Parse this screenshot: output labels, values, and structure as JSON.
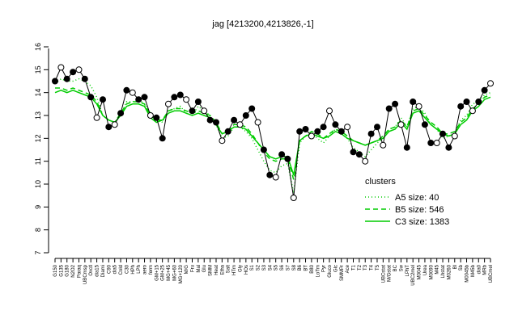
{
  "chart_data": {
    "type": "line",
    "title": "jag [4213200,4213826,-1]",
    "ylim": [
      7,
      16
    ],
    "y_ticks": [
      7,
      8,
      9,
      10,
      11,
      12,
      13,
      14,
      15,
      16
    ],
    "x_tick_labels": [
      "G150",
      "G135",
      "G180",
      "N2O2",
      "Paraq",
      "UBCmsp",
      "Oxctl",
      "dia15",
      "Diami",
      "C90",
      "dia5",
      "Cold",
      "C30",
      "HPh",
      "LPh",
      "aero",
      "ferm",
      "GM+15",
      "GM+25",
      "MG+45",
      "MG+60",
      "MG+120",
      "M/G",
      "Fru",
      "Mal",
      "Glu",
      "SMM",
      "Heat",
      "Etha",
      "Salt",
      "HTm",
      "Gly",
      "HOs",
      "S1",
      "S2",
      "S3",
      "S4",
      "S5",
      "S6",
      "S7",
      "S8",
      "B6",
      "BT",
      "B80",
      "LoTm",
      "Pyr",
      "Gluco",
      "Glc",
      "SMMPr",
      "Ace",
      "T1",
      "T2",
      "T3",
      "T4",
      "T5",
      "UBCstat",
      "M/Gstat",
      "BC",
      "Sw",
      "LPhT",
      "UBC2mel",
      "M0045",
      "Urea",
      "M0090",
      "M45",
      "Lhstat",
      "M0260",
      "Bl",
      "Sb",
      "M0045b",
      "M45b",
      "dia0",
      "MRb",
      "UBCmel"
    ],
    "series": [
      {
        "name": "A5 size: 40",
        "style": "dotted",
        "color": "#00cc00",
        "values": [
          14.4,
          14.6,
          14.5,
          14.5,
          14.6,
          14.5,
          14.3,
          13.8,
          13.0,
          12.8,
          12.7,
          13.0,
          13.6,
          13.6,
          13.7,
          13.5,
          13.1,
          12.9,
          12.7,
          13.2,
          13.3,
          13.4,
          13.1,
          13.0,
          13.4,
          13.2,
          13.0,
          12.6,
          12.0,
          12.1,
          12.5,
          12.5,
          12.3,
          12.0,
          11.5,
          11.0,
          10.6,
          10.5,
          10.8,
          10.9,
          9.6,
          11.8,
          12.1,
          12.2,
          12.0,
          11.8,
          12.1,
          12.4,
          12.2,
          12.0,
          11.6,
          11.4,
          11.2,
          11.5,
          11.8,
          12.0,
          12.4,
          12.5,
          12.9,
          12.5,
          13.3,
          13.4,
          13.1,
          12.6,
          12.4,
          12.0,
          12.1,
          12.2,
          12.8,
          13.0,
          13.5,
          13.6,
          13.9,
          14.0
        ]
      },
      {
        "name": "B5 size: 546",
        "style": "dashed",
        "color": "#00cc00",
        "values": [
          14.2,
          14.2,
          14.1,
          14.2,
          14.1,
          14.0,
          13.9,
          13.6,
          13.0,
          12.8,
          12.7,
          13.1,
          13.5,
          13.6,
          13.6,
          13.5,
          13.0,
          12.8,
          12.8,
          13.2,
          13.3,
          13.3,
          13.2,
          13.1,
          13.2,
          13.1,
          13.0,
          12.7,
          12.2,
          12.3,
          12.6,
          12.6,
          12.5,
          12.2,
          11.8,
          11.4,
          11.1,
          11.0,
          11.1,
          11.1,
          10.2,
          11.9,
          12.1,
          12.3,
          12.2,
          12.0,
          12.2,
          12.4,
          12.3,
          12.1,
          11.9,
          11.8,
          11.7,
          11.8,
          11.9,
          12.1,
          12.4,
          12.5,
          12.8,
          12.5,
          13.2,
          13.3,
          13.0,
          12.7,
          12.5,
          12.2,
          12.2,
          12.3,
          12.7,
          12.9,
          13.3,
          13.5,
          13.8,
          13.9
        ]
      },
      {
        "name": "C3 size: 1383",
        "style": "solid",
        "color": "#00cc00",
        "values": [
          14.0,
          14.1,
          14.0,
          14.1,
          14.0,
          13.9,
          13.8,
          13.5,
          13.0,
          12.8,
          12.7,
          13.0,
          13.4,
          13.5,
          13.5,
          13.4,
          12.9,
          12.7,
          12.8,
          13.1,
          13.2,
          13.2,
          13.1,
          13.0,
          13.1,
          13.0,
          12.9,
          12.6,
          12.2,
          12.3,
          12.5,
          12.5,
          12.4,
          12.1,
          11.8,
          11.5,
          11.2,
          11.1,
          11.2,
          11.2,
          10.4,
          11.9,
          12.1,
          12.2,
          12.1,
          12.0,
          12.1,
          12.3,
          12.2,
          12.0,
          11.9,
          11.8,
          11.7,
          11.8,
          11.9,
          12.0,
          12.3,
          12.4,
          12.7,
          12.4,
          13.1,
          13.2,
          12.9,
          12.6,
          12.4,
          12.2,
          12.1,
          12.2,
          12.6,
          12.8,
          13.2,
          13.4,
          13.7,
          13.8
        ]
      },
      {
        "name": "jag",
        "style": "points",
        "color": "#000000",
        "values": [
          14.5,
          15.1,
          14.6,
          14.9,
          15.0,
          14.6,
          13.8,
          12.9,
          13.7,
          12.5,
          12.6,
          13.1,
          14.1,
          14.0,
          13.7,
          13.8,
          13.0,
          12.9,
          12.0,
          13.5,
          13.8,
          13.9,
          13.7,
          13.2,
          13.6,
          13.2,
          12.8,
          12.7,
          11.9,
          12.3,
          12.8,
          12.6,
          13.0,
          13.3,
          12.7,
          11.5,
          10.4,
          10.3,
          11.3,
          11.1,
          9.4,
          12.3,
          12.4,
          12.1,
          12.3,
          12.5,
          13.2,
          12.6,
          12.3,
          12.5,
          11.4,
          11.3,
          11.0,
          12.2,
          12.5,
          11.7,
          13.3,
          13.5,
          12.6,
          11.6,
          13.6,
          13.4,
          12.6,
          11.8,
          11.8,
          12.2,
          11.6,
          12.1,
          13.4,
          13.6,
          13.2,
          13.6,
          14.1,
          14.4
        ]
      }
    ],
    "legend": {
      "title": "clusters",
      "placement": "bottom-right"
    }
  }
}
